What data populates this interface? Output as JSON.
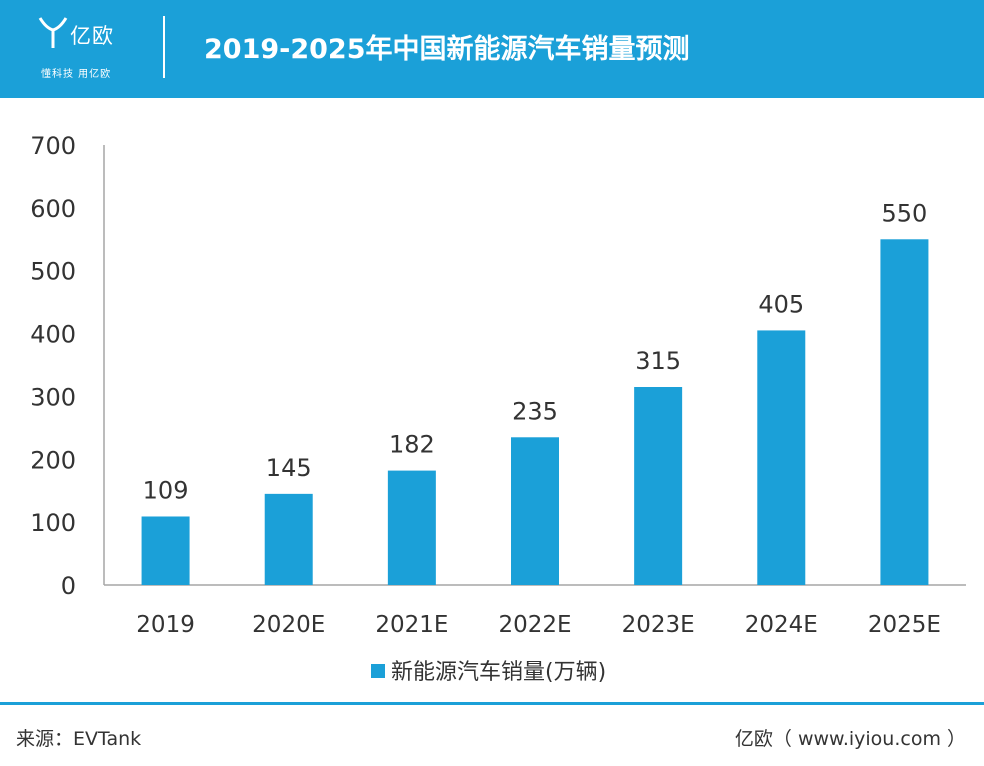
{
  "header": {
    "logo_name": "亿欧",
    "logo_slogan": "懂科技 用亿欧",
    "title": "2019-2025年中国新能源汽车销量预测"
  },
  "chart_data": {
    "type": "bar",
    "categories": [
      "2019",
      "2020E",
      "2021E",
      "2022E",
      "2023E",
      "2024E",
      "2025E"
    ],
    "series": [
      {
        "name": "新能源汽车销量(万辆)",
        "values": [
          109,
          145,
          182,
          235,
          315,
          405,
          550
        ]
      }
    ],
    "yticks": [
      "0",
      "100",
      "200",
      "300",
      "400",
      "500",
      "600",
      "700"
    ],
    "ylim": [
      0,
      700
    ],
    "grid": false,
    "legend": "bottom-center",
    "bar_color": "#1ba0d8",
    "title": "",
    "xlabel": "",
    "ylabel": ""
  },
  "footer": {
    "source": "来源：EVTank",
    "site": "亿欧（ www.iyiou.com ）"
  },
  "colors": {
    "brand": "#1ba0d8",
    "text": "#333333",
    "axis": "#a6a6a6"
  }
}
